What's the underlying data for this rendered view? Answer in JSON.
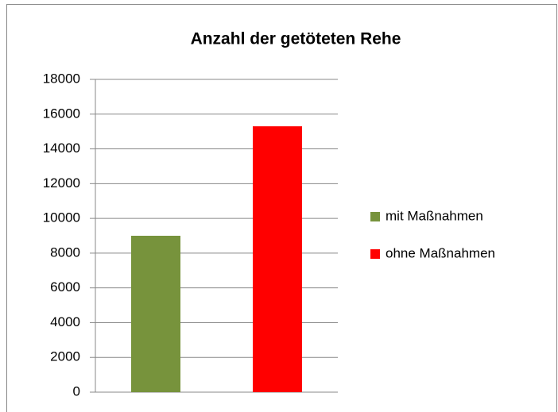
{
  "chart_data": {
    "type": "bar",
    "title": "Anzahl der getöteten Rehe",
    "categories": [
      null
    ],
    "series": [
      {
        "name": "mit Maßnahmen",
        "color": "#77933c",
        "values": [
          9000
        ]
      },
      {
        "name": "ohne Maßnahmen",
        "color": "#ff0000",
        "values": [
          15300
        ]
      }
    ],
    "ylim": [
      0,
      18000
    ],
    "yticks": [
      0,
      2000,
      4000,
      6000,
      8000,
      10000,
      12000,
      14000,
      16000,
      18000
    ],
    "grid": true,
    "legend": "right"
  }
}
